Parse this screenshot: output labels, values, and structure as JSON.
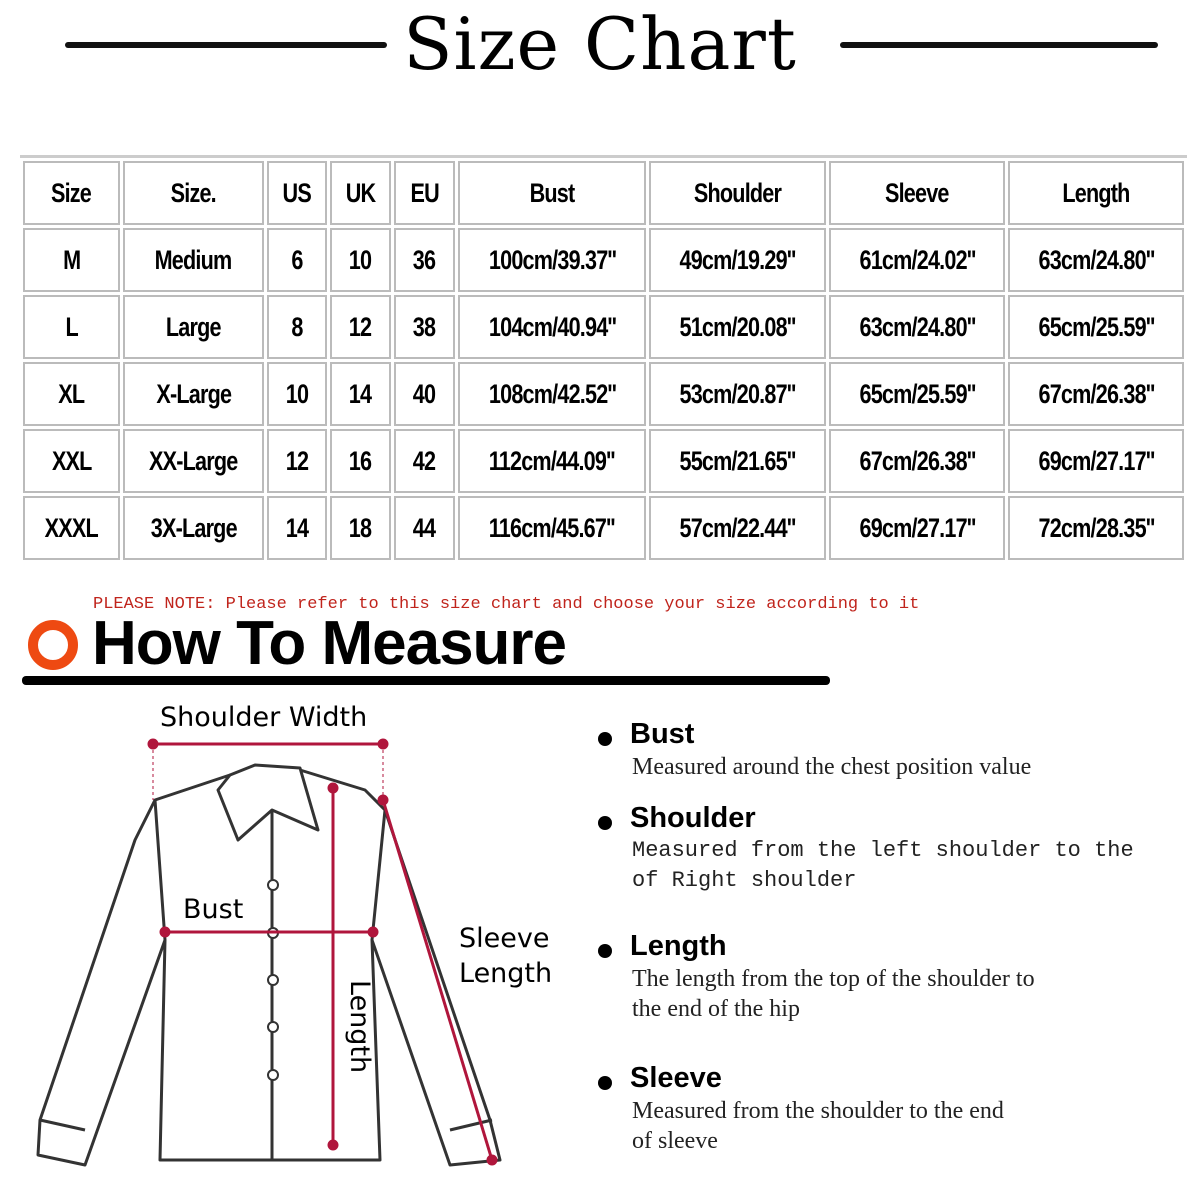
{
  "title": "Size Chart",
  "table": {
    "headers": [
      "Size",
      "Size.",
      "US",
      "UK",
      "EU",
      "Bust",
      "Shoulder",
      "Sleeve",
      "Length"
    ],
    "rows": [
      [
        "M",
        "Medium",
        "6",
        "10",
        "36",
        "100cm/39.37''",
        "49cm/19.29''",
        "61cm/24.02''",
        "63cm/24.80''"
      ],
      [
        "L",
        "Large",
        "8",
        "12",
        "38",
        "104cm/40.94''",
        "51cm/20.08''",
        "63cm/24.80''",
        "65cm/25.59''"
      ],
      [
        "XL",
        "X-Large",
        "10",
        "14",
        "40",
        "108cm/42.52''",
        "53cm/20.87''",
        "65cm/25.59''",
        "67cm/26.38''"
      ],
      [
        "XXL",
        "XX-Large",
        "12",
        "16",
        "42",
        "112cm/44.09''",
        "55cm/21.65''",
        "67cm/26.38''",
        "69cm/27.17''"
      ],
      [
        "XXXL",
        "3X-Large",
        "14",
        "18",
        "44",
        "116cm/45.67''",
        "57cm/22.44''",
        "69cm/27.17''",
        "72cm/28.35''"
      ]
    ]
  },
  "note": "PLEASE NOTE: Please refer to this size chart and choose your size according to it",
  "how_to_measure": {
    "title": "How To Measure",
    "accent_color": "#ee4a12",
    "diagram_labels": {
      "shoulder_width": "Shoulder Width",
      "bust": "Bust",
      "sleeve_1": "Sleeve",
      "sleeve_2": "Length",
      "length": "Length"
    },
    "items": [
      {
        "heading": "Bust",
        "lines": [
          "Measured around the chest position value"
        ]
      },
      {
        "heading": "Shoulder",
        "lines": [
          "Measured from the left shoulder to the",
          "of Right shoulder"
        ]
      },
      {
        "heading": "Length",
        "lines": [
          "The length from the top of the shoulder to",
          "the end of the hip"
        ]
      },
      {
        "heading": "Sleeve",
        "lines": [
          "Measured from the shoulder to the end",
          "of sleeve"
        ]
      }
    ]
  }
}
